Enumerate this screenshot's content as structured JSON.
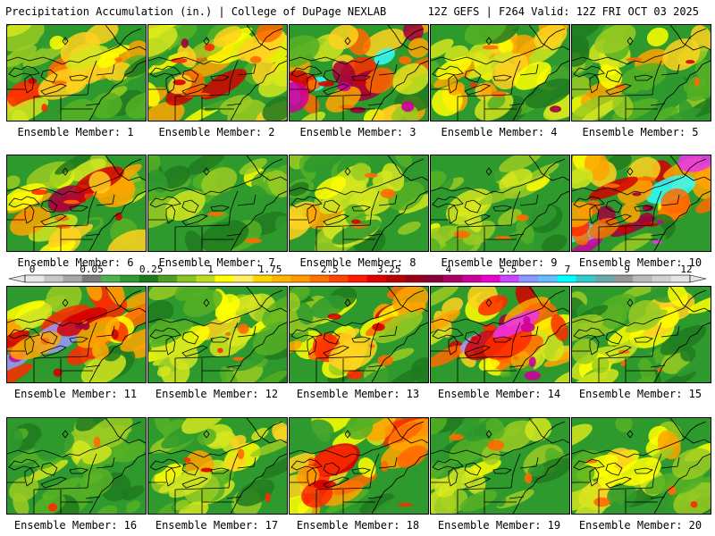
{
  "header": {
    "left": "Precipitation Accumulation (in.) | College of DuPage NEXLAB",
    "right": "12Z GEFS | F264 Valid: 12Z FRI OCT 03 2025"
  },
  "member_label_prefix": "Ensemble Member:",
  "members": [
    {
      "number": 1,
      "label": "Ensemble Member: 1",
      "intensity": 0.55
    },
    {
      "number": 2,
      "label": "Ensemble Member: 2",
      "intensity": 0.75
    },
    {
      "number": 3,
      "label": "Ensemble Member: 3",
      "intensity": 0.95
    },
    {
      "number": 4,
      "label": "Ensemble Member: 4",
      "intensity": 0.55
    },
    {
      "number": 5,
      "label": "Ensemble Member: 5",
      "intensity": 0.45
    },
    {
      "number": 6,
      "label": "Ensemble Member: 6",
      "intensity": 0.7
    },
    {
      "number": 7,
      "label": "Ensemble Member: 7",
      "intensity": 0.3
    },
    {
      "number": 8,
      "label": "Ensemble Member: 8",
      "intensity": 0.45
    },
    {
      "number": 9,
      "label": "Ensemble Member: 9",
      "intensity": 0.35
    },
    {
      "number": 10,
      "label": "Ensemble Member: 10",
      "intensity": 0.95
    },
    {
      "number": 11,
      "label": "Ensemble Member: 11",
      "intensity": 0.85
    },
    {
      "number": 12,
      "label": "Ensemble Member: 12",
      "intensity": 0.45
    },
    {
      "number": 13,
      "label": "Ensemble Member: 13",
      "intensity": 0.6
    },
    {
      "number": 14,
      "label": "Ensemble Member: 14",
      "intensity": 0.85
    },
    {
      "number": 15,
      "label": "Ensemble Member: 15",
      "intensity": 0.4
    },
    {
      "number": 16,
      "label": "Ensemble Member: 16",
      "intensity": 0.3
    },
    {
      "number": 17,
      "label": "Ensemble Member: 17",
      "intensity": 0.45
    },
    {
      "number": 18,
      "label": "Ensemble Member: 18",
      "intensity": 0.7
    },
    {
      "number": 19,
      "label": "Ensemble Member: 19",
      "intensity": 0.35
    },
    {
      "number": 20,
      "label": "Ensemble Member: 20",
      "intensity": 0.45
    }
  ],
  "colorbar": {
    "tick_labels": [
      "0",
      "0.05",
      "0.25",
      "1",
      "1.75",
      "2.5",
      "3.25",
      "4",
      "5.5",
      "7",
      "9",
      "12"
    ],
    "colors": [
      "#e8e8e8",
      "#c8c8c8",
      "#a8a8a8",
      "#7c7c7c",
      "#50b050",
      "#2e9a2e",
      "#1a7a1a",
      "#4f9e22",
      "#86c522",
      "#c0dc22",
      "#ffff00",
      "#fff065",
      "#ffd700",
      "#ffb400",
      "#ff9a00",
      "#ff7200",
      "#ff4500",
      "#ff1a00",
      "#e00000",
      "#bb0000",
      "#990018",
      "#8b0034",
      "#aa0066",
      "#cc0099",
      "#ee00cc",
      "#cc44ff",
      "#8899ff",
      "#66bbff",
      "#00ffff",
      "#33cccc",
      "#66aaaa",
      "#999999",
      "#bbbbbb",
      "#d0d0d0",
      "#e4e4e4"
    ]
  },
  "map_colors": {
    "scale": [
      "#1e7a1e",
      "#2e9a2e",
      "#55b025",
      "#9acb22",
      "#d4e61e",
      "#ffff00",
      "#ffd21e",
      "#ffa500",
      "#ff6a00",
      "#ff2a00",
      "#d40000",
      "#a0003c",
      "#cc0099",
      "#ee33ee",
      "#9999ff",
      "#33ffff"
    ],
    "lines": "#000000"
  }
}
